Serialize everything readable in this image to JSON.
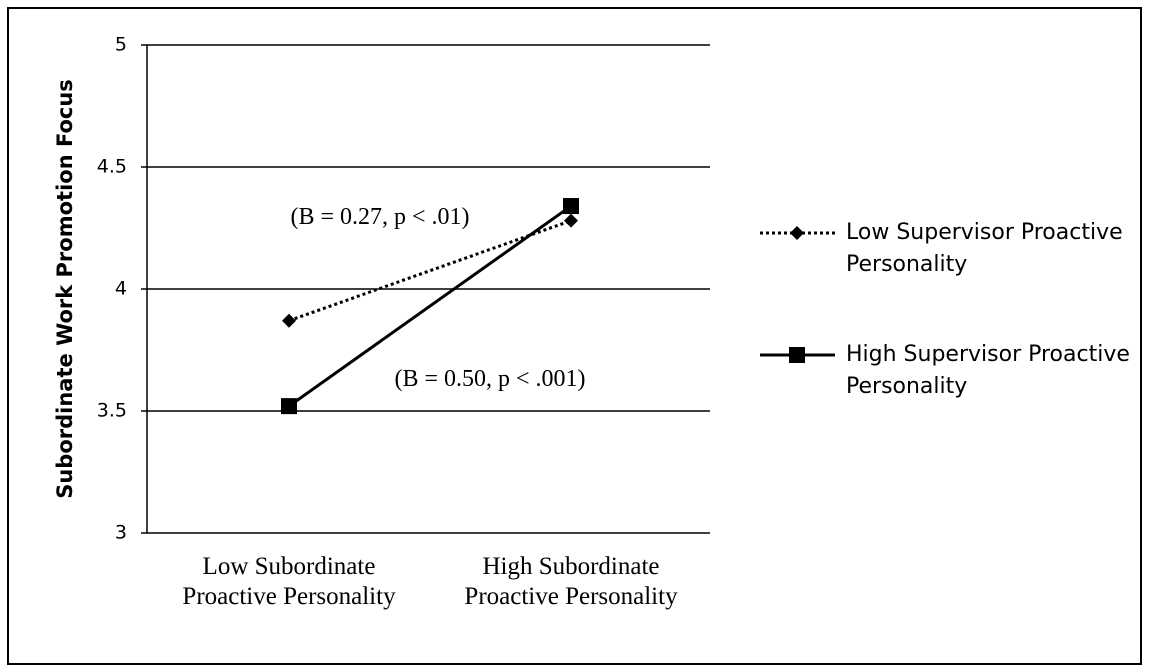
{
  "chart_data": {
    "type": "line",
    "ylabel": "Subordinate Work Promotion Focus",
    "categories": [
      "Low Subordinate Proactive Personality",
      "High Subordinate Proactive Personality"
    ],
    "series": [
      {
        "name": "Low Supervisor Proactive Personality",
        "color": "#000000",
        "line_style": "dotted",
        "marker": "diamond",
        "values": [
          3.87,
          4.28
        ]
      },
      {
        "name": "High Supervisor Proactive Personality",
        "color": "#000000",
        "line_style": "solid",
        "marker": "square",
        "values": [
          3.52,
          4.34
        ]
      }
    ],
    "annotations": [
      "(B = 0.27, p < .01)",
      "(B = 0.50, p < .001)"
    ],
    "ylim": [
      3,
      5
    ],
    "yticks": [
      3,
      3.5,
      4,
      4.5,
      5
    ],
    "grid": true,
    "legend": "right"
  }
}
